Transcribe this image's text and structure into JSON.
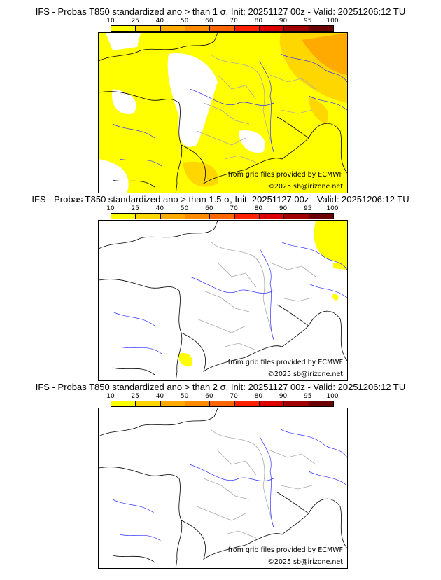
{
  "panels": [
    {
      "title": "IFS - Probas T850  standardized ano > than 1 σ, Init: 20251127 00z - Valid: 20251206:12 TU",
      "coverage": "high"
    },
    {
      "title": "IFS - Probas T850  standardized ano > than 1.5 σ, Init: 20251127 00z - Valid: 20251206:12 TU",
      "coverage": "low"
    },
    {
      "title": "IFS - Probas T850  standardized ano > than 2 σ, Init: 20251127 00z - Valid: 20251206:12 TU",
      "coverage": "none"
    }
  ],
  "colorbar": {
    "ticks": [
      "10",
      "25",
      "40",
      "50",
      "60",
      "70",
      "80",
      "90",
      "95",
      "100"
    ],
    "colors": [
      "#ffff00",
      "#ffd700",
      "#ffaa00",
      "#ff8c00",
      "#ff6600",
      "#ff2000",
      "#dd0000",
      "#a00000",
      "#6b0000"
    ]
  },
  "credits": {
    "source": "from grib files provided by ECMWF",
    "copyright": "©2025 sb@irizone.net"
  }
}
